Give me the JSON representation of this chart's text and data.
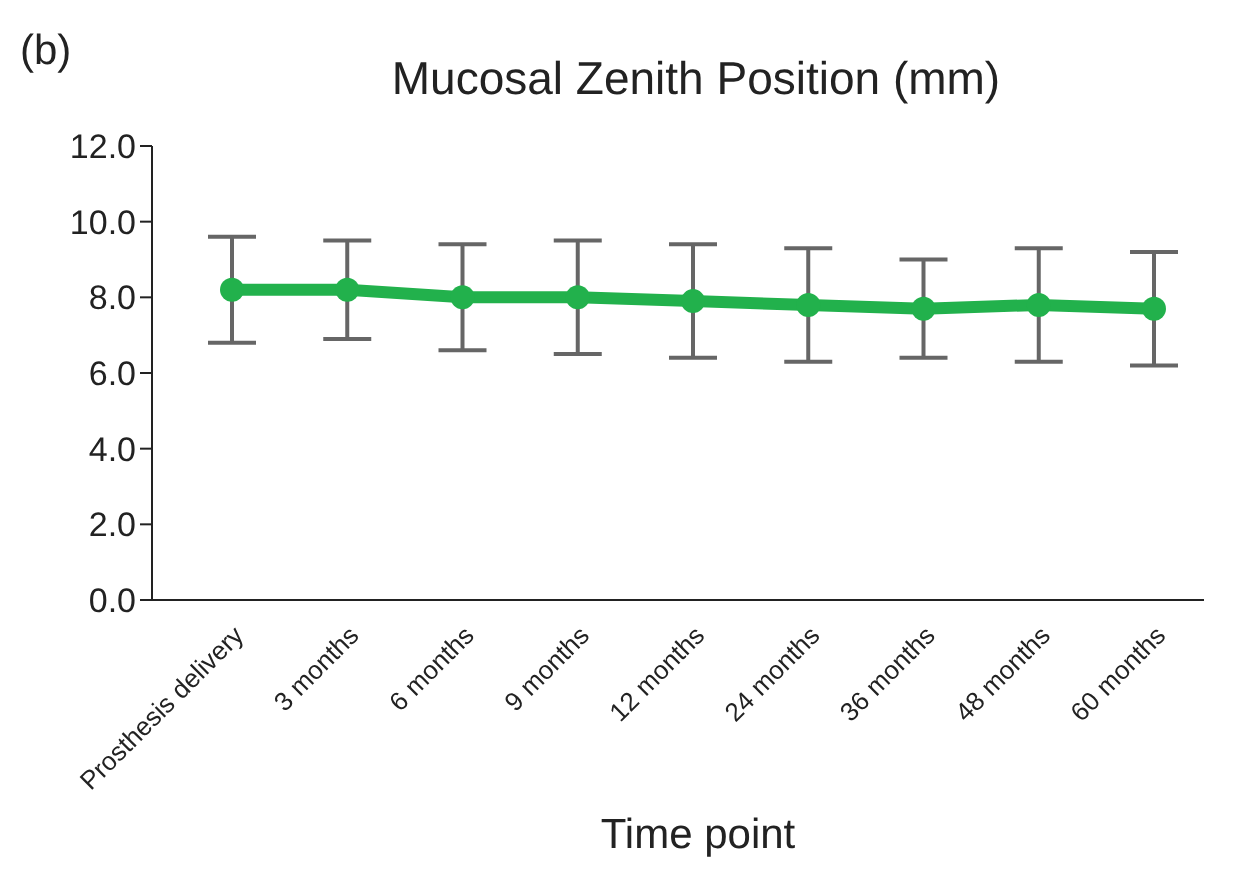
{
  "chart_data": {
    "type": "line",
    "title": "Mucosal Zenith Position (mm)",
    "xlabel": "Time point",
    "annotations": [
      "(b)"
    ],
    "categories": [
      "Prosthesis delivery",
      "3 months",
      "6 months",
      "9 months",
      "12 months",
      "24 months",
      "36 months",
      "48 months",
      "60 months"
    ],
    "series": [
      {
        "color": "#22b14c",
        "values": [
          8.2,
          8.2,
          8.0,
          8.0,
          7.9,
          7.8,
          7.7,
          7.8,
          7.7
        ],
        "errors": [
          [
            6.8,
            9.6
          ],
          [
            6.9,
            9.5
          ],
          [
            6.6,
            9.4
          ],
          [
            6.5,
            9.5
          ],
          [
            6.4,
            9.4
          ],
          [
            6.3,
            9.3
          ],
          [
            6.4,
            9.0
          ],
          [
            6.3,
            9.3
          ],
          [
            6.2,
            9.2
          ]
        ]
      }
    ],
    "ylim": [
      0,
      12
    ],
    "yticks": [
      {
        "value": 0,
        "label": "0.0"
      },
      {
        "value": 2,
        "label": "2.0"
      },
      {
        "value": 4,
        "label": "4.0"
      },
      {
        "value": 6,
        "label": "6.0"
      },
      {
        "value": 8,
        "label": "8.0"
      },
      {
        "value": 10,
        "label": "10.0"
      },
      {
        "value": 12,
        "label": "12.0"
      }
    ],
    "grid": false,
    "legend": false,
    "marker": "circle",
    "line_style": "solid"
  }
}
